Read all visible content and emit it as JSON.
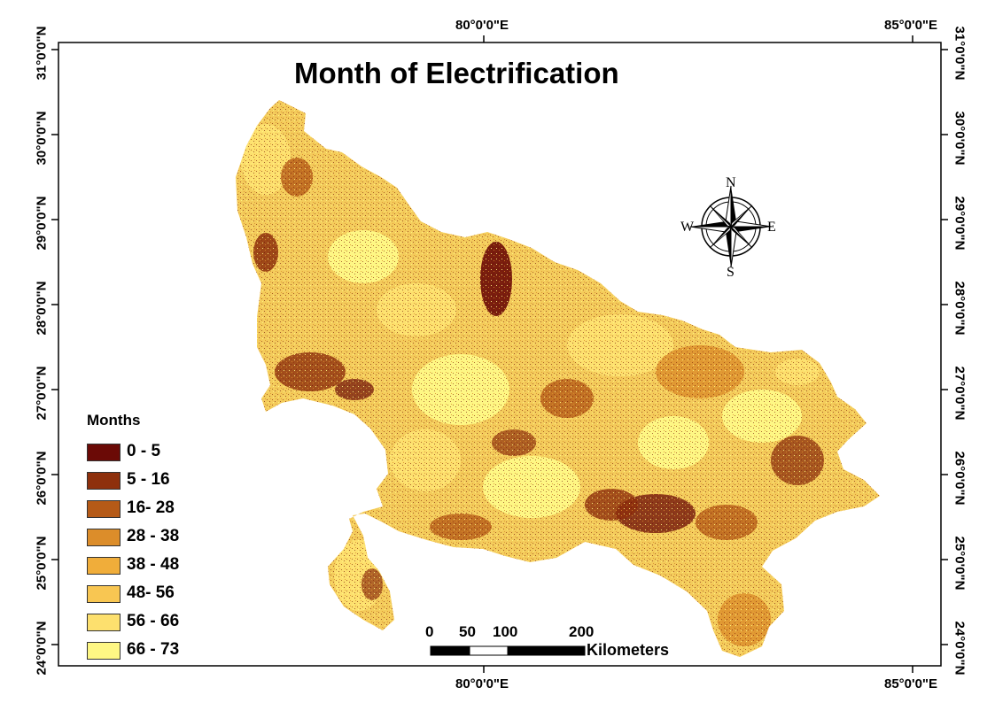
{
  "title": "Month of Electrification",
  "frame": {
    "top_ticks": [
      "80°0'0\"E",
      "85°0'0\"E"
    ],
    "bottom_ticks": [
      "80°0'0\"E",
      "85°0'0\"E"
    ],
    "left_ticks": [
      "31°0'0\"N",
      "30°0'0\"N",
      "29°0'0\"N",
      "28°0'0\"N",
      "27°0'0\"N",
      "26°0'0\"N",
      "25°0'0\"N",
      "24°0'0\"N"
    ],
    "right_ticks": [
      "31°0'0\"N",
      "30°0'0\"N",
      "29°0'0\"N",
      "28°0'0\"N",
      "27°0'0\"N",
      "26°0'0\"N",
      "25°0'0\"N",
      "24°0'0\"N"
    ]
  },
  "legend": {
    "title": "Months",
    "items": [
      {
        "label": "0 - 5",
        "color": "#6b0a06"
      },
      {
        "label": "5 - 16",
        "color": "#8e300c"
      },
      {
        "label": "16- 28",
        "color": "#b55a17"
      },
      {
        "label": "28 - 38",
        "color": "#dc8d2a"
      },
      {
        "label": "38 - 48",
        "color": "#f0ad3a"
      },
      {
        "label": "48- 56",
        "color": "#f8c652"
      },
      {
        "label": "56 - 66",
        "color": "#fde06e"
      },
      {
        "label": "66 - 73",
        "color": "#fef784"
      }
    ]
  },
  "scale_bar": {
    "labels": [
      "0",
      "50",
      "100",
      "200"
    ],
    "unit": "Kilometers"
  },
  "north_arrow": {
    "letters": {
      "n": "N",
      "s": "S",
      "e": "E",
      "w": "W"
    },
    "icon": "compass-rose-icon"
  },
  "colors": {
    "region_base": "#f4cc5c",
    "region_outline": "#b57a24"
  }
}
